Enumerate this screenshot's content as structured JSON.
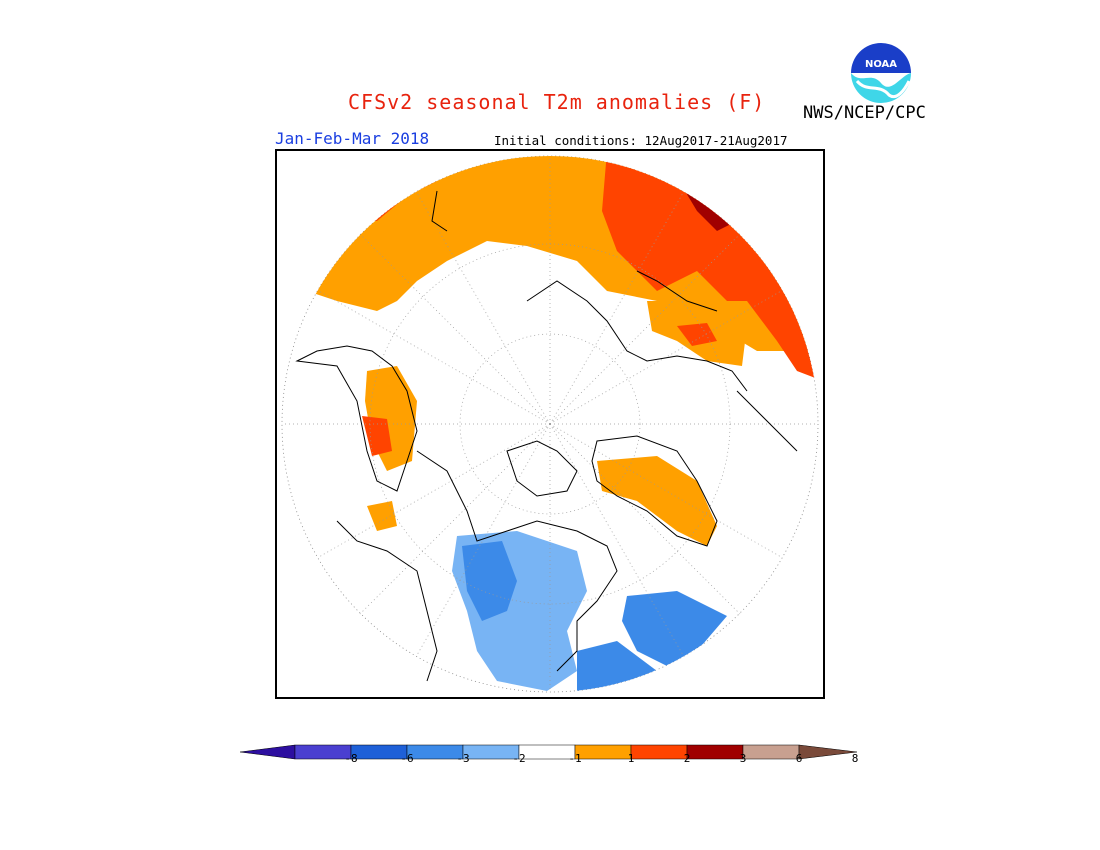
{
  "header": {
    "title": "CFSv2 seasonal T2m anomalies (F)",
    "agency": "NWS/NCEP/CPC",
    "season": "Jan-Feb-Mar 2018",
    "initial_conditions": "Initial conditions: 12Aug2017-21Aug2017"
  },
  "logo": {
    "text": "NOAA",
    "icon": "noaa-logo"
  },
  "colorbar": {
    "colors": [
      "#2d0fa0",
      "#4a3fd0",
      "#1e60d8",
      "#3c8ae8",
      "#78b4f4",
      "#ffffff",
      "#ffa000",
      "#ff4400",
      "#a00000",
      "#c8a090",
      "#7a4a3a"
    ],
    "ticks": [
      "-8",
      "-6",
      "-3",
      "-2",
      "-1",
      "1",
      "2",
      "3",
      "6",
      "8"
    ]
  },
  "map": {
    "projection": "north polar stereographic",
    "colors": {
      "warm_1_2": "#ffa000",
      "warm_2_3": "#ff4400",
      "warm_3_6": "#a00000",
      "cool_m2_m1": "#78b4f4",
      "cool_m3_m2": "#3c8ae8"
    }
  }
}
